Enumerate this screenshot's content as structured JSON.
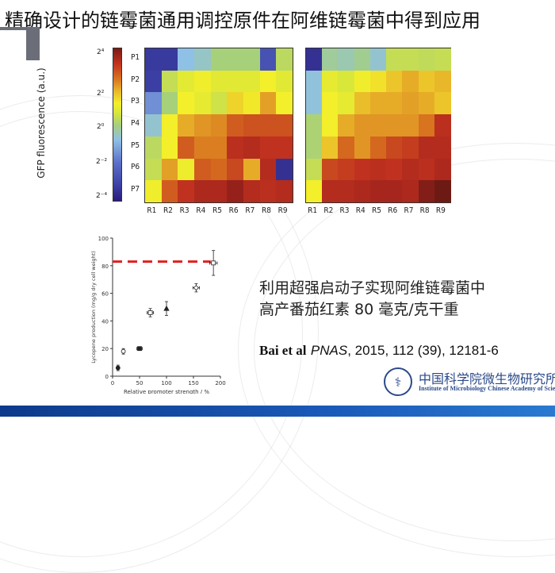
{
  "slide": {
    "title": "精确设计的链霉菌通用调控原件在阿维链霉菌中得到应用",
    "main_text_lines": [
      "利用超强启动子实现阿维链霉菌中",
      "高产番茄红素 80 毫克/克干重"
    ],
    "citation": {
      "authors": "Bai et al",
      "journal": "PNAS",
      "details": ", 2015, 112 (39), 12181-6"
    },
    "institute": {
      "name_cn": "中国科学院微生物研究所",
      "name_en": "Institute of Microbiology Chinese Academy of Sciences",
      "logo_icon": "institute-seal-icon"
    },
    "colors": {
      "accent_bar": "#6b6e78",
      "footer": "#1a5ab8",
      "institute_text": "#2b4a8a",
      "reference_line": "#e0201e"
    }
  },
  "chart_data": [
    {
      "type": "heatmap",
      "title": "",
      "colorbar_label": "GFP fluorescence (a.u.)",
      "colorbar_ticks": [
        "2⁴",
        "2²",
        "2⁰",
        "2⁻²",
        "2⁻⁴"
      ],
      "colorbar_range_log2": [
        -4,
        5
      ],
      "rows": [
        "P1",
        "P2",
        "P3",
        "P4",
        "P5",
        "P6",
        "P7"
      ],
      "columns": [
        "R1",
        "R2",
        "R3",
        "R4",
        "R5",
        "R6",
        "R7",
        "R8",
        "R9"
      ],
      "values_log2": [
        [
          -3.2,
          -3.2,
          -1.0,
          -0.7,
          0.0,
          0.0,
          0.0,
          -2.6,
          0.4
        ],
        [
          -3.0,
          0.6,
          1.4,
          1.9,
          1.3,
          1.3,
          1.3,
          2.0,
          1.3
        ],
        [
          -1.6,
          0.0,
          2.0,
          1.5,
          0.8,
          2.4,
          2.1,
          3.0,
          2.0
        ],
        [
          -0.8,
          2.0,
          2.9,
          3.1,
          3.2,
          3.6,
          3.7,
          3.7,
          3.7
        ],
        [
          0.4,
          2.0,
          3.6,
          3.3,
          3.3,
          4.1,
          4.2,
          4.0,
          4.0
        ],
        [
          0.6,
          3.0,
          1.8,
          3.6,
          3.5,
          3.8,
          2.9,
          4.2,
          -3.6
        ],
        [
          1.9,
          3.6,
          4.0,
          4.3,
          4.3,
          4.6,
          4.2,
          4.1,
          4.2
        ]
      ]
    },
    {
      "type": "heatmap",
      "title": "",
      "rows": [
        "P1",
        "P2",
        "P3",
        "P4",
        "P5",
        "P6",
        "P7"
      ],
      "columns": [
        "R1",
        "R2",
        "R3",
        "R4",
        "R5",
        "R6",
        "R7",
        "R8",
        "R9"
      ],
      "values_log2": [
        [
          -3.6,
          -0.3,
          -0.5,
          -0.2,
          -0.8,
          0.6,
          0.6,
          0.5,
          0.6
        ],
        [
          -0.9,
          1.5,
          1.0,
          1.9,
          2.2,
          2.6,
          2.9,
          2.6,
          2.8
        ],
        [
          -0.9,
          2.0,
          1.5,
          2.7,
          2.9,
          2.9,
          3.0,
          2.9,
          2.6
        ],
        [
          0.1,
          2.0,
          2.9,
          3.1,
          3.1,
          3.1,
          3.1,
          3.4,
          4.1
        ],
        [
          0.1,
          2.6,
          3.5,
          3.1,
          3.5,
          3.8,
          3.9,
          4.2,
          4.2
        ],
        [
          0.6,
          3.8,
          3.9,
          4.0,
          4.1,
          4.0,
          4.2,
          4.1,
          4.3
        ],
        [
          2.0,
          4.2,
          4.2,
          4.3,
          4.4,
          4.4,
          4.3,
          4.8,
          5.0
        ]
      ]
    },
    {
      "type": "scatter",
      "title": "",
      "xlabel": "Relative promoter strength / %",
      "ylabel": "Lycopene production (mg/g dry cell weight)",
      "xlim": [
        0,
        200
      ],
      "ylim": [
        0,
        100
      ],
      "xticks": [
        0,
        50,
        100,
        150,
        200
      ],
      "yticks": [
        0,
        20,
        40,
        60,
        80,
        100
      ],
      "points": [
        {
          "x": 10,
          "y": 6,
          "xerr": 1,
          "yerr": 2,
          "marker": "filled-circle"
        },
        {
          "x": 20,
          "y": 18,
          "xerr": 1,
          "yerr": 2,
          "marker": "open-circle"
        },
        {
          "x": 50,
          "y": 20,
          "xerr": 5,
          "yerr": 1,
          "marker": "filled-square"
        },
        {
          "x": 70,
          "y": 46,
          "xerr": 6,
          "yerr": 3,
          "marker": "open-square"
        },
        {
          "x": 100,
          "y": 49,
          "xerr": 1,
          "yerr": 5,
          "marker": "filled-triangle"
        },
        {
          "x": 155,
          "y": 64,
          "xerr": 6,
          "yerr": 3,
          "marker": "open-diamond"
        },
        {
          "x": 187,
          "y": 82,
          "xerr": 7,
          "yerr": 9,
          "marker": "open-square-cross"
        }
      ],
      "reference_line": {
        "y": 83,
        "style": "dashed",
        "color": "#e0201e"
      }
    }
  ]
}
